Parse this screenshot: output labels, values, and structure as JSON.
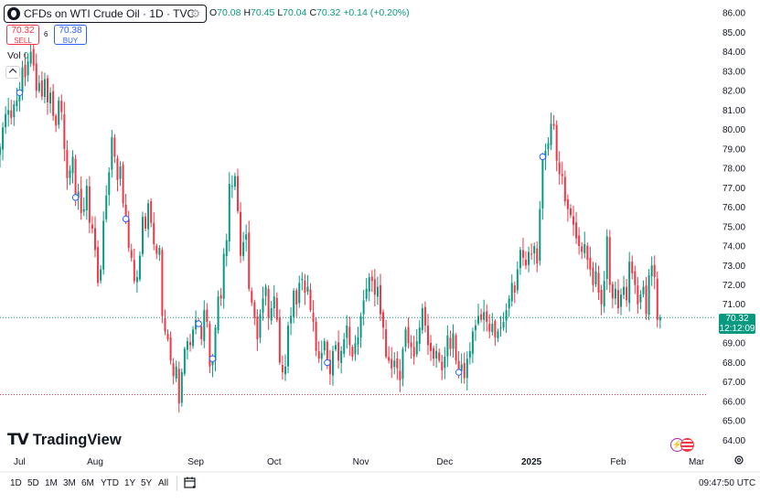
{
  "header": {
    "symbol_title": "CFDs on WTI Crude Oil · 1D · TVC",
    "ohlc": {
      "o_label": "O",
      "o": "70.08",
      "h_label": "H",
      "h": "70.45",
      "l_label": "L",
      "l": "70.04",
      "c_label": "C",
      "c": "70.32",
      "change": "+0.14 (+0.20%)"
    },
    "sell_price": "70.32",
    "sell_label": "SELL",
    "buy_price": "70.38",
    "buy_label": "BUY",
    "spread": "6",
    "volume_label": "Vol",
    "volume_value": "0"
  },
  "branding": {
    "logo_text": "TradingView"
  },
  "current_price": {
    "value": "70.32",
    "countdown": "12:12:09"
  },
  "bottom_bar": {
    "ranges": [
      "1D",
      "5D",
      "1M",
      "3M",
      "6M",
      "YTD",
      "1Y",
      "5Y",
      "All"
    ],
    "time": "09:47:50 UTC"
  },
  "colors": {
    "up": "#089981",
    "down": "#f23645",
    "accent": "#2962ff",
    "text": "#131722"
  },
  "chart_data": {
    "type": "candlestick",
    "title": "CFDs on WTI Crude Oil · 1D · TVC",
    "y_tick_labels": [
      "64.00",
      "65.00",
      "66.00",
      "67.00",
      "68.00",
      "69.00",
      "70.00",
      "71.00",
      "72.00",
      "73.00",
      "74.00",
      "75.00",
      "76.00",
      "77.00",
      "78.00",
      "79.00",
      "80.00",
      "81.00",
      "82.00",
      "83.00",
      "84.00",
      "85.00",
      "86.00"
    ],
    "ylim": [
      63.5,
      86.2
    ],
    "x_tick_labels": [
      "Jul",
      "Aug",
      "Sep",
      "Oct",
      "Nov",
      "Dec",
      "2025",
      "Feb",
      "Mar"
    ],
    "x_tick_days": [
      2,
      29,
      65,
      93,
      124,
      154,
      185,
      216,
      244
    ],
    "x_range_days": [
      -5,
      251
    ],
    "last_price": 70.32,
    "dashed_low_line": 66.35,
    "grid": false,
    "closes": [
      {
        "d": -5,
        "c": 79.1
      },
      {
        "d": -4,
        "c": 80.1
      },
      {
        "d": -3,
        "c": 80.8
      },
      {
        "d": -2,
        "c": 81.0
      },
      {
        "d": -1,
        "c": 80.6
      },
      {
        "d": 0,
        "c": 81.3
      },
      {
        "d": 1,
        "c": 81.5
      },
      {
        "d": 2,
        "c": 81.9
      },
      {
        "d": 3,
        "c": 83.2
      },
      {
        "d": 4,
        "c": 82.7
      },
      {
        "d": 5,
        "c": 83.5
      },
      {
        "d": 6,
        "c": 84.0
      },
      {
        "d": 7,
        "c": 83.3
      },
      {
        "d": 8,
        "c": 82.0
      },
      {
        "d": 9,
        "c": 82.4
      },
      {
        "d": 10,
        "c": 81.7
      },
      {
        "d": 11,
        "c": 82.6
      },
      {
        "d": 12,
        "c": 81.4
      },
      {
        "d": 13,
        "c": 81.9
      },
      {
        "d": 14,
        "c": 80.7
      },
      {
        "d": 15,
        "c": 80.2
      },
      {
        "d": 16,
        "c": 81.5
      },
      {
        "d": 17,
        "c": 80.9
      },
      {
        "d": 18,
        "c": 79.0
      },
      {
        "d": 19,
        "c": 77.5
      },
      {
        "d": 20,
        "c": 77.9
      },
      {
        "d": 21,
        "c": 78.6
      },
      {
        "d": 22,
        "c": 76.5
      },
      {
        "d": 23,
        "c": 76.8
      },
      {
        "d": 24,
        "c": 75.7
      },
      {
        "d": 25,
        "c": 75.9
      },
      {
        "d": 26,
        "c": 77.1
      },
      {
        "d": 27,
        "c": 75.2
      },
      {
        "d": 28,
        "c": 74.9
      },
      {
        "d": 29,
        "c": 73.8
      },
      {
        "d": 30,
        "c": 72.1
      },
      {
        "d": 31,
        "c": 72.8
      },
      {
        "d": 32,
        "c": 75.3
      },
      {
        "d": 33,
        "c": 76.6
      },
      {
        "d": 34,
        "c": 77.8
      },
      {
        "d": 35,
        "c": 79.6
      },
      {
        "d": 36,
        "c": 78.6
      },
      {
        "d": 37,
        "c": 77.4
      },
      {
        "d": 38,
        "c": 78.1
      },
      {
        "d": 39,
        "c": 76.2
      },
      {
        "d": 40,
        "c": 75.4
      },
      {
        "d": 41,
        "c": 73.9
      },
      {
        "d": 42,
        "c": 73.4
      },
      {
        "d": 43,
        "c": 72.2
      },
      {
        "d": 44,
        "c": 72.4
      },
      {
        "d": 45,
        "c": 73.5
      },
      {
        "d": 46,
        "c": 75.5
      },
      {
        "d": 47,
        "c": 74.9
      },
      {
        "d": 48,
        "c": 76.2
      },
      {
        "d": 49,
        "c": 75.2
      },
      {
        "d": 50,
        "c": 74.1
      },
      {
        "d": 51,
        "c": 73.6
      },
      {
        "d": 52,
        "c": 73.9
      },
      {
        "d": 53,
        "c": 70.4
      },
      {
        "d": 54,
        "c": 69.6
      },
      {
        "d": 55,
        "c": 69.2
      },
      {
        "d": 56,
        "c": 68.1
      },
      {
        "d": 57,
        "c": 67.3
      },
      {
        "d": 58,
        "c": 67.8
      },
      {
        "d": 59,
        "c": 65.9
      },
      {
        "d": 60,
        "c": 67.5
      },
      {
        "d": 61,
        "c": 68.7
      },
      {
        "d": 62,
        "c": 69.1
      },
      {
        "d": 63,
        "c": 68.9
      },
      {
        "d": 64,
        "c": 69.7
      },
      {
        "d": 65,
        "c": 70.2
      },
      {
        "d": 66,
        "c": 70.0
      },
      {
        "d": 67,
        "c": 69.2
      },
      {
        "d": 68,
        "c": 70.7
      },
      {
        "d": 69,
        "c": 70.1
      },
      {
        "d": 70,
        "c": 67.8
      },
      {
        "d": 71,
        "c": 68.2
      },
      {
        "d": 72,
        "c": 69.8
      },
      {
        "d": 73,
        "c": 71.4
      },
      {
        "d": 74,
        "c": 71.3
      },
      {
        "d": 75,
        "c": 73.6
      },
      {
        "d": 76,
        "c": 74.3
      },
      {
        "d": 77,
        "c": 77.2
      },
      {
        "d": 78,
        "c": 77.1
      },
      {
        "d": 79,
        "c": 77.6
      },
      {
        "d": 80,
        "c": 75.8
      },
      {
        "d": 81,
        "c": 73.5
      },
      {
        "d": 82,
        "c": 74.2
      },
      {
        "d": 83,
        "c": 74.6
      },
      {
        "d": 84,
        "c": 71.8
      },
      {
        "d": 85,
        "c": 71.1
      },
      {
        "d": 86,
        "c": 70.3
      },
      {
        "d": 87,
        "c": 69.2
      },
      {
        "d": 88,
        "c": 70.5
      },
      {
        "d": 89,
        "c": 71.3
      },
      {
        "d": 90,
        "c": 71.9
      },
      {
        "d": 91,
        "c": 70.3
      },
      {
        "d": 92,
        "c": 70.8
      },
      {
        "d": 93,
        "c": 71.4
      },
      {
        "d": 94,
        "c": 70.2
      },
      {
        "d": 95,
        "c": 68.0
      },
      {
        "d": 96,
        "c": 67.5
      },
      {
        "d": 97,
        "c": 67.8
      },
      {
        "d": 98,
        "c": 69.9
      },
      {
        "d": 99,
        "c": 70.4
      },
      {
        "d": 100,
        "c": 71.7
      },
      {
        "d": 101,
        "c": 71.0
      },
      {
        "d": 102,
        "c": 72.1
      },
      {
        "d": 103,
        "c": 72.3
      },
      {
        "d": 104,
        "c": 71.6
      },
      {
        "d": 105,
        "c": 71.9
      },
      {
        "d": 106,
        "c": 70.7
      },
      {
        "d": 107,
        "c": 70.1
      },
      {
        "d": 108,
        "c": 68.6
      },
      {
        "d": 109,
        "c": 68.2
      },
      {
        "d": 110,
        "c": 68.5
      },
      {
        "d": 111,
        "c": 69.1
      },
      {
        "d": 112,
        "c": 68.0
      },
      {
        "d": 113,
        "c": 67.4
      },
      {
        "d": 114,
        "c": 68.6
      },
      {
        "d": 115,
        "c": 68.9
      },
      {
        "d": 116,
        "c": 68.1
      },
      {
        "d": 117,
        "c": 68.6
      },
      {
        "d": 118,
        "c": 69.2
      },
      {
        "d": 119,
        "c": 69.9
      },
      {
        "d": 120,
        "c": 68.9
      },
      {
        "d": 121,
        "c": 68.3
      },
      {
        "d": 122,
        "c": 69.0
      },
      {
        "d": 123,
        "c": 69.3
      },
      {
        "d": 124,
        "c": 70.4
      },
      {
        "d": 125,
        "c": 71.2
      },
      {
        "d": 126,
        "c": 71.8
      },
      {
        "d": 127,
        "c": 72.4
      },
      {
        "d": 128,
        "c": 72.2
      },
      {
        "d": 129,
        "c": 71.5
      },
      {
        "d": 130,
        "c": 71.9
      },
      {
        "d": 131,
        "c": 70.5
      },
      {
        "d": 132,
        "c": 69.8
      },
      {
        "d": 133,
        "c": 68.3
      },
      {
        "d": 134,
        "c": 68.1
      },
      {
        "d": 135,
        "c": 67.7
      },
      {
        "d": 136,
        "c": 68.1
      },
      {
        "d": 137,
        "c": 67.7
      },
      {
        "d": 138,
        "c": 67.1
      },
      {
        "d": 139,
        "c": 68.7
      },
      {
        "d": 140,
        "c": 69.7
      },
      {
        "d": 141,
        "c": 69.0
      },
      {
        "d": 142,
        "c": 68.8
      },
      {
        "d": 143,
        "c": 68.3
      },
      {
        "d": 144,
        "c": 69.1
      },
      {
        "d": 145,
        "c": 69.8
      },
      {
        "d": 146,
        "c": 70.8
      },
      {
        "d": 147,
        "c": 69.9
      },
      {
        "d": 148,
        "c": 68.9
      },
      {
        "d": 149,
        "c": 68.6
      },
      {
        "d": 150,
        "c": 68.2
      },
      {
        "d": 151,
        "c": 68.6
      },
      {
        "d": 152,
        "c": 68.1
      },
      {
        "d": 153,
        "c": 67.6
      },
      {
        "d": 154,
        "c": 68.3
      },
      {
        "d": 155,
        "c": 69.4
      },
      {
        "d": 156,
        "c": 68.7
      },
      {
        "d": 157,
        "c": 69.5
      },
      {
        "d": 158,
        "c": 68.1
      },
      {
        "d": 159,
        "c": 67.5
      },
      {
        "d": 160,
        "c": 67.9
      },
      {
        "d": 161,
        "c": 67.2
      },
      {
        "d": 162,
        "c": 68.2
      },
      {
        "d": 163,
        "c": 68.6
      },
      {
        "d": 164,
        "c": 69.6
      },
      {
        "d": 165,
        "c": 69.9
      },
      {
        "d": 166,
        "c": 70.4
      },
      {
        "d": 167,
        "c": 70.2
      },
      {
        "d": 168,
        "c": 70.6
      },
      {
        "d": 169,
        "c": 70.1
      },
      {
        "d": 170,
        "c": 69.6
      },
      {
        "d": 171,
        "c": 70.0
      },
      {
        "d": 172,
        "c": 69.3
      },
      {
        "d": 173,
        "c": 69.6
      },
      {
        "d": 174,
        "c": 69.8
      },
      {
        "d": 175,
        "c": 70.1
      },
      {
        "d": 176,
        "c": 70.7
      },
      {
        "d": 177,
        "c": 71.3
      },
      {
        "d": 178,
        "c": 72.1
      },
      {
        "d": 179,
        "c": 71.6
      },
      {
        "d": 180,
        "c": 72.8
      },
      {
        "d": 181,
        "c": 73.8
      },
      {
        "d": 182,
        "c": 73.4
      },
      {
        "d": 183,
        "c": 73.0
      },
      {
        "d": 184,
        "c": 73.7
      },
      {
        "d": 185,
        "c": 73.6
      },
      {
        "d": 186,
        "c": 74.0
      },
      {
        "d": 187,
        "c": 73.1
      },
      {
        "d": 188,
        "c": 75.9
      },
      {
        "d": 189,
        "c": 78.6
      },
      {
        "d": 190,
        "c": 78.9
      },
      {
        "d": 191,
        "c": 79.3
      },
      {
        "d": 192,
        "c": 80.3
      },
      {
        "d": 193,
        "c": 80.2
      },
      {
        "d": 194,
        "c": 78.4
      },
      {
        "d": 195,
        "c": 77.7
      },
      {
        "d": 196,
        "c": 77.6
      },
      {
        "d": 197,
        "c": 76.3
      },
      {
        "d": 198,
        "c": 75.9
      },
      {
        "d": 199,
        "c": 75.6
      },
      {
        "d": 200,
        "c": 75.1
      },
      {
        "d": 201,
        "c": 74.4
      },
      {
        "d": 202,
        "c": 74.0
      },
      {
        "d": 203,
        "c": 73.7
      },
      {
        "d": 204,
        "c": 74.1
      },
      {
        "d": 205,
        "c": 73.3
      },
      {
        "d": 206,
        "c": 72.8
      },
      {
        "d": 207,
        "c": 72.0
      },
      {
        "d": 208,
        "c": 72.7
      },
      {
        "d": 209,
        "c": 71.6
      },
      {
        "d": 210,
        "c": 71.0
      },
      {
        "d": 211,
        "c": 72.2
      },
      {
        "d": 212,
        "c": 74.5
      },
      {
        "d": 213,
        "c": 72.0
      },
      {
        "d": 214,
        "c": 71.3
      },
      {
        "d": 215,
        "c": 71.8
      },
      {
        "d": 216,
        "c": 70.8
      },
      {
        "d": 217,
        "c": 71.5
      },
      {
        "d": 218,
        "c": 71.9
      },
      {
        "d": 219,
        "c": 71.2
      },
      {
        "d": 220,
        "c": 73.2
      },
      {
        "d": 221,
        "c": 72.6
      },
      {
        "d": 222,
        "c": 72.0
      },
      {
        "d": 223,
        "c": 71.0
      },
      {
        "d": 224,
        "c": 71.5
      },
      {
        "d": 225,
        "c": 71.9
      },
      {
        "d": 226,
        "c": 70.5
      },
      {
        "d": 227,
        "c": 72.5
      },
      {
        "d": 228,
        "c": 73.0
      },
      {
        "d": 229,
        "c": 72.4
      },
      {
        "d": 230,
        "c": 70.2
      },
      {
        "d": 231,
        "c": 70.32
      }
    ]
  }
}
